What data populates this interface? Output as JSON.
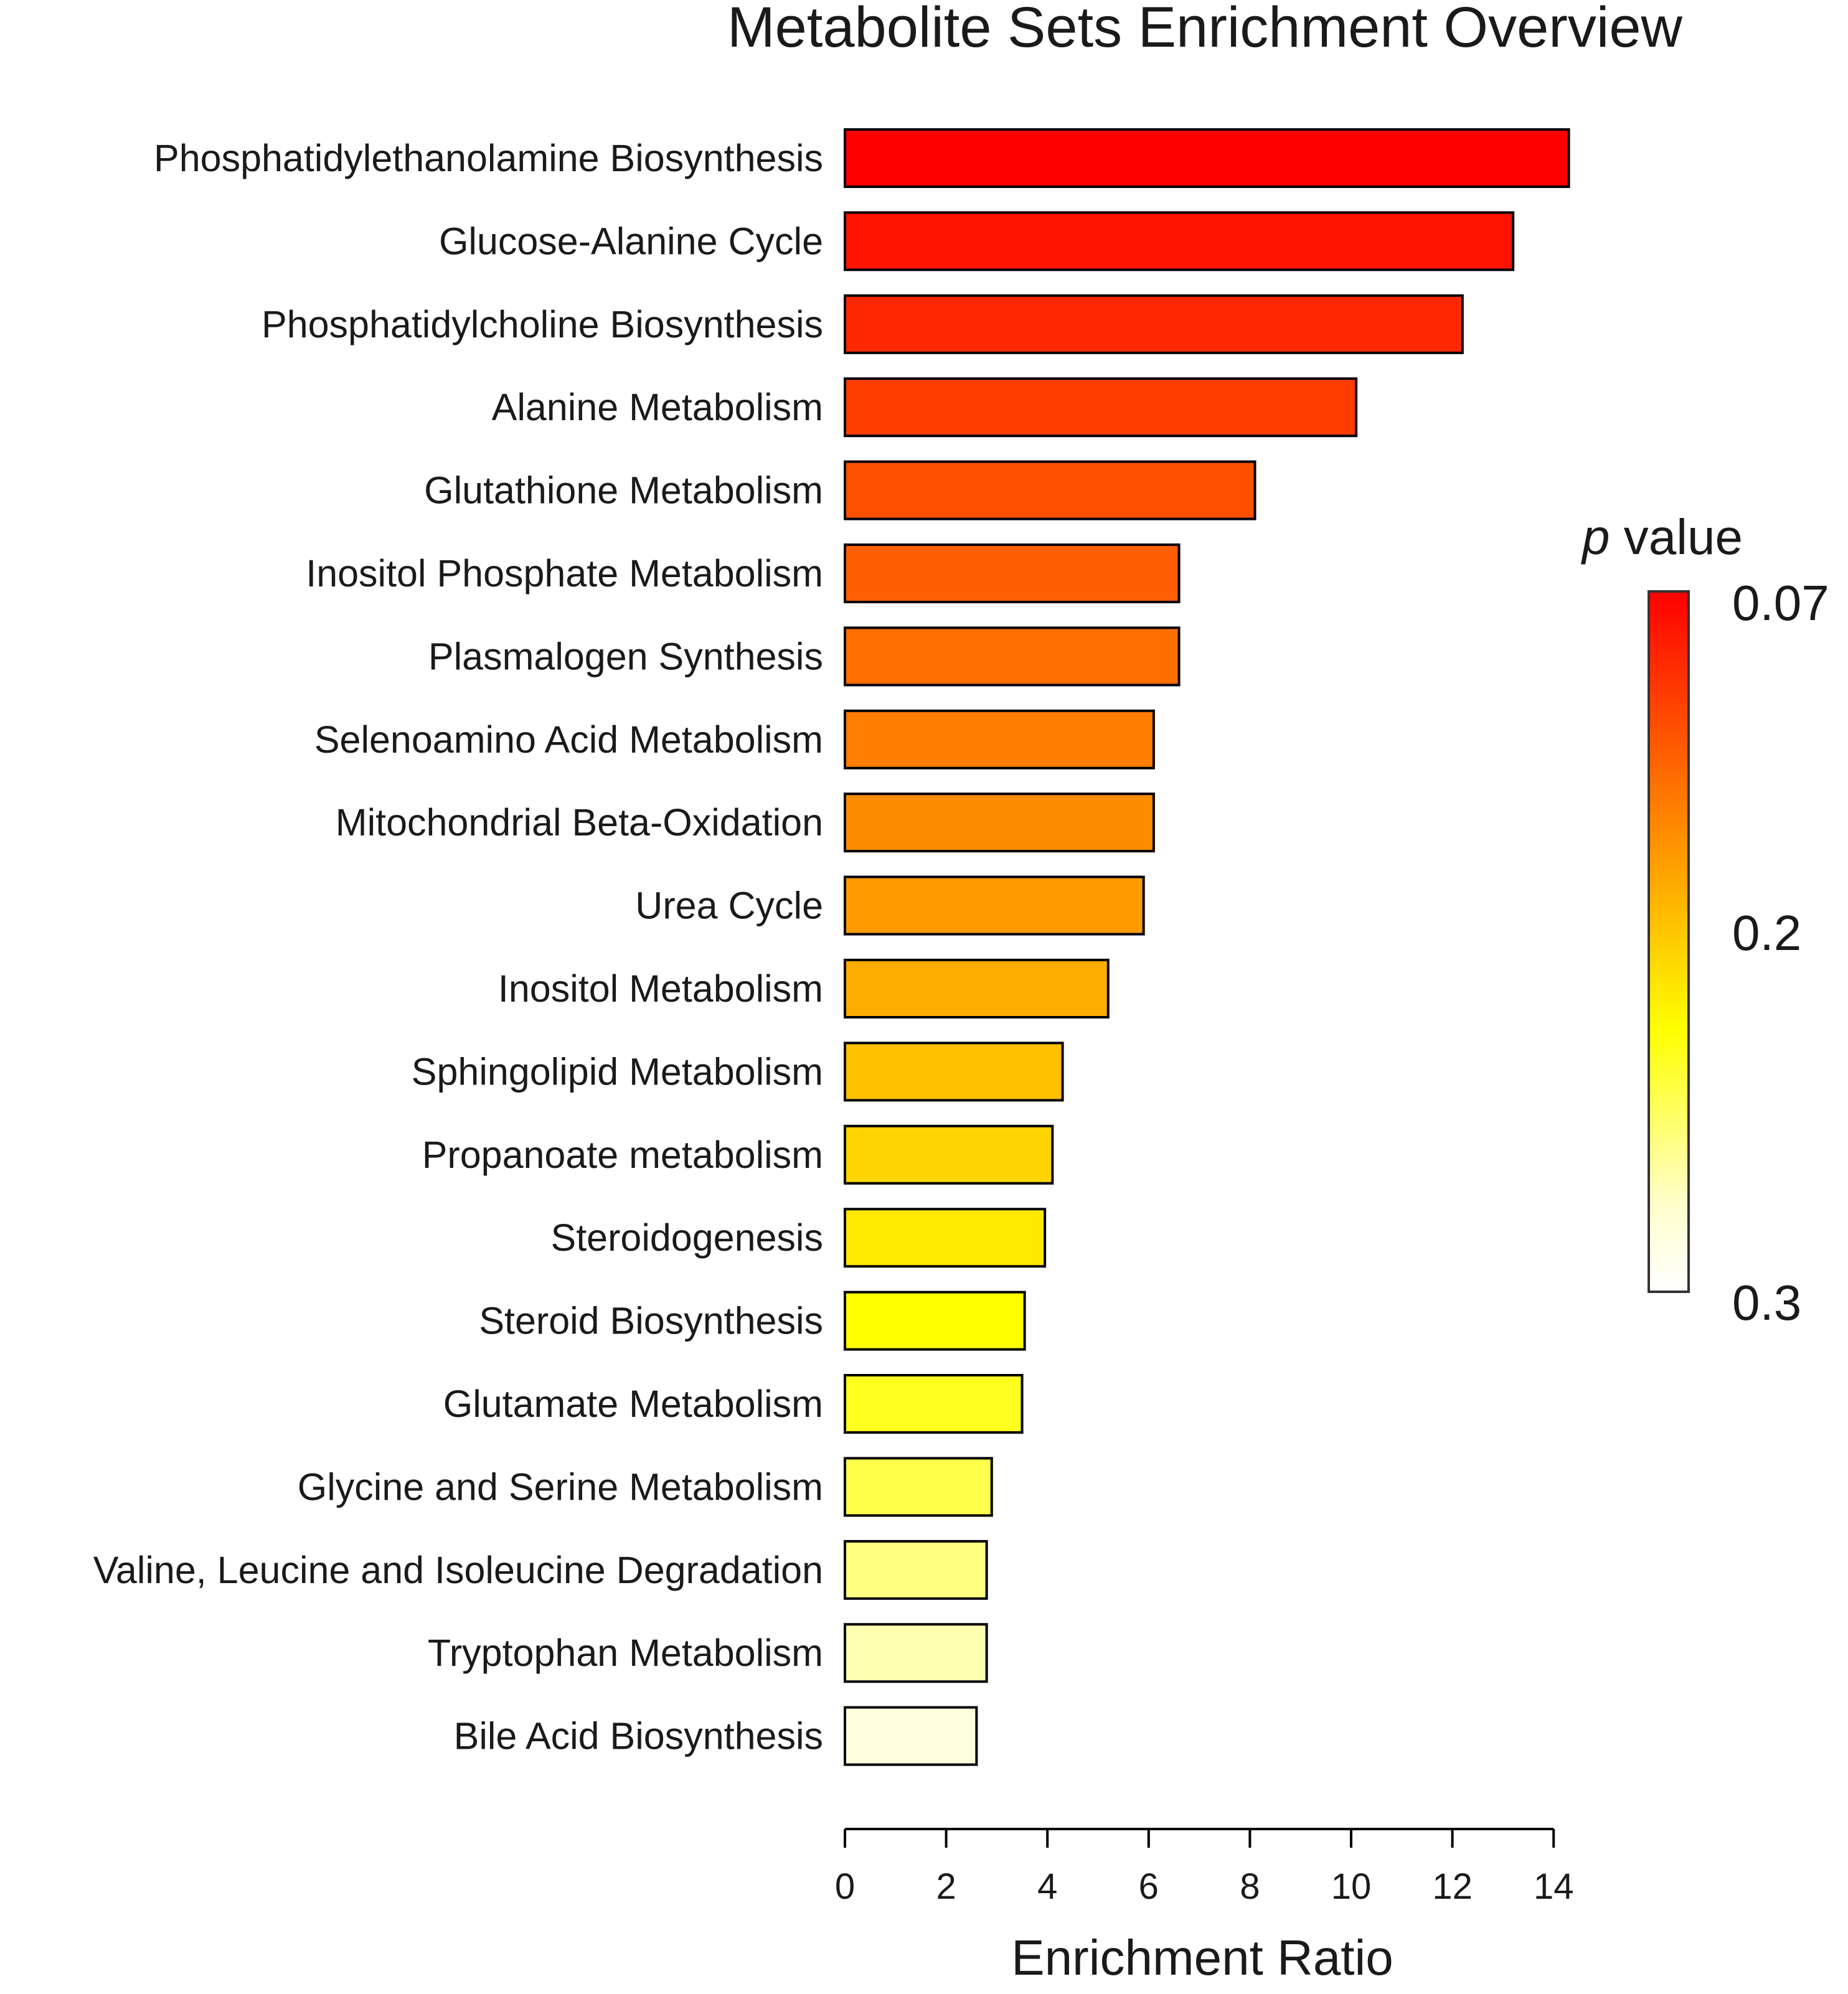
{
  "chart_data": {
    "type": "bar",
    "orientation": "horizontal",
    "title": "Metabolite Sets Enrichment Overview",
    "xlabel": "Enrichment Ratio",
    "ylabel": "",
    "xlim": [
      0,
      14
    ],
    "xticks": [
      0,
      2,
      4,
      6,
      8,
      10,
      12,
      14
    ],
    "grid": false,
    "categories": [
      "Phosphatidylethanolamine Biosynthesis",
      "Glucose-Alanine Cycle",
      "Phosphatidylcholine Biosynthesis",
      "Alanine Metabolism",
      "Glutathione Metabolism",
      "Inositol Phosphate Metabolism",
      "Plasmalogen Synthesis",
      "Selenoamino Acid Metabolism",
      "Mitochondrial Beta-Oxidation",
      "Urea Cycle",
      "Inositol Metabolism",
      "Sphingolipid Metabolism",
      "Propanoate metabolism",
      "Steroidogenesis",
      "Steroid Biosynthesis",
      "Glutamate Metabolism",
      "Glycine and Serine Metabolism",
      "Valine, Leucine and Isoleucine Degradation",
      "Tryptophan Metabolism",
      "Bile Acid Biosynthesis"
    ],
    "values": [
      14.3,
      13.2,
      12.2,
      10.1,
      8.1,
      6.6,
      6.6,
      6.1,
      6.1,
      5.9,
      5.2,
      4.3,
      4.1,
      3.95,
      3.55,
      3.5,
      2.9,
      2.8,
      2.8,
      2.6
    ],
    "bar_colors": [
      "#ff0000",
      "#ff1400",
      "#ff2800",
      "#ff3c00",
      "#ff5000",
      "#ff5f00",
      "#ff6e00",
      "#ff7d00",
      "#ff8c00",
      "#ff9b00",
      "#ffad00",
      "#ffc000",
      "#ffd400",
      "#ffe800",
      "#ffff00",
      "#ffff20",
      "#ffff4c",
      "#ffff80",
      "#ffffb0",
      "#ffffe0"
    ],
    "legend": {
      "title_italic": "p",
      "title_rest": " value",
      "labels": [
        "0.07",
        "0.2",
        "0.3"
      ],
      "placement": "right",
      "colors": [
        "#ff0000",
        "#ff3300",
        "#ff6600",
        "#ff9900",
        "#ffcc00",
        "#ffff00",
        "#ffff66",
        "#ffffcc",
        "#ffffff"
      ]
    }
  }
}
